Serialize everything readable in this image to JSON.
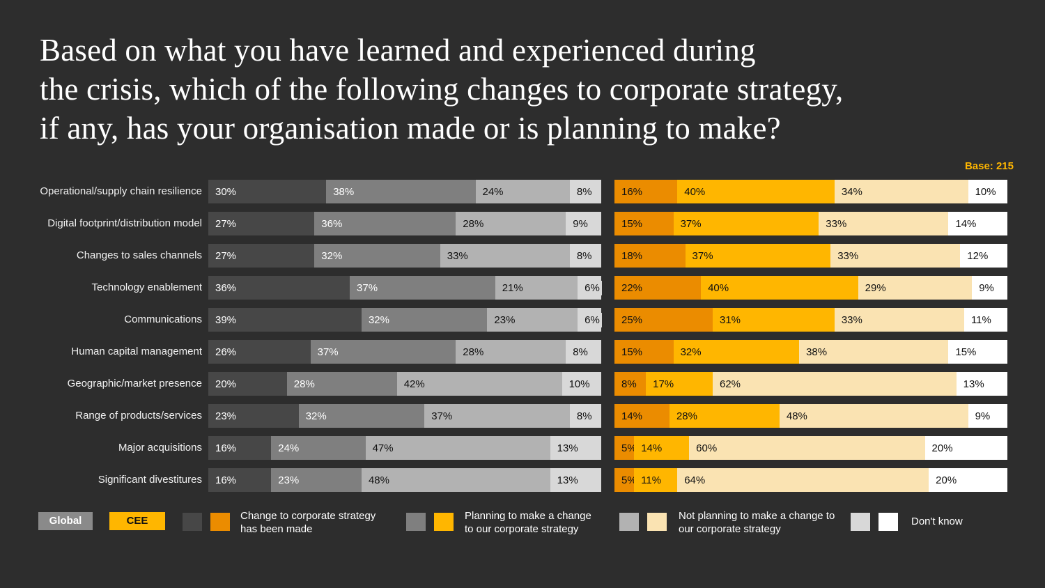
{
  "title": {
    "lines": [
      "Based on what you have learned and experienced during",
      "the crisis, which of the following changes to corporate strategy,",
      "if any, has your organisation made or is planning to make?"
    ]
  },
  "base_note": "Base: 215",
  "legend": {
    "global_button": "Global",
    "cee_button": "CEE",
    "items": [
      {
        "key": "made",
        "label": "Change to corporate strategy has been made"
      },
      {
        "key": "planning",
        "label": "Planning to make a change to our corporate strategy"
      },
      {
        "key": "not_planning",
        "label": "Not planning to make a change to our corporate strategy"
      },
      {
        "key": "dont_know",
        "label": "Don't know"
      }
    ]
  },
  "colors": {
    "background": "#2d2d2d",
    "accent": "#ffb600",
    "global_segments": [
      "#474747",
      "#7f7f7f",
      "#b2b2b2",
      "#d8d8d8"
    ],
    "cee_segments": [
      "#eb8c00",
      "#ffb600",
      "#fae3b2",
      "#ffffff"
    ],
    "global_text": [
      "#ffffff",
      "#ffffff",
      "#111111",
      "#111111"
    ],
    "cee_text": [
      "#111111",
      "#111111",
      "#111111",
      "#111111"
    ],
    "global_button_bg": "#8a8a8a",
    "title_text": "#ffffff"
  },
  "chart_data": {
    "type": "bar",
    "subtype": "horizontal-stacked-paired",
    "unit": "%",
    "base": 215,
    "legend_position": "bottom",
    "segments": [
      "Change to corporate strategy has been made",
      "Planning to make a change to our corporate strategy",
      "Not planning to make a change to our corporate strategy",
      "Don't know"
    ],
    "segment_keys": [
      "made",
      "planning",
      "not_planning",
      "dont_know"
    ],
    "categories": [
      "Operational/supply chain resilience",
      "Digital footprint/distribution model",
      "Changes to sales channels",
      "Technology enablement",
      "Communications",
      "Human capital management",
      "Geographic/market presence",
      "Range of products/services",
      "Major acquisitions",
      "Significant divestitures"
    ],
    "series": [
      {
        "name": "Global",
        "values": [
          [
            30,
            38,
            24,
            8
          ],
          [
            27,
            36,
            28,
            9
          ],
          [
            27,
            32,
            33,
            8
          ],
          [
            36,
            37,
            21,
            6
          ],
          [
            39,
            32,
            23,
            6
          ],
          [
            26,
            37,
            28,
            8
          ],
          [
            20,
            28,
            42,
            10
          ],
          [
            23,
            32,
            37,
            8
          ],
          [
            16,
            24,
            47,
            13
          ],
          [
            16,
            23,
            48,
            13
          ]
        ]
      },
      {
        "name": "CEE",
        "values": [
          [
            16,
            40,
            34,
            10
          ],
          [
            15,
            37,
            33,
            14
          ],
          [
            18,
            37,
            33,
            12
          ],
          [
            22,
            40,
            29,
            9
          ],
          [
            25,
            31,
            33,
            11
          ],
          [
            15,
            32,
            38,
            15
          ],
          [
            8,
            17,
            62,
            13
          ],
          [
            14,
            28,
            48,
            9
          ],
          [
            5,
            14,
            60,
            20
          ],
          [
            5,
            11,
            64,
            20
          ]
        ]
      }
    ]
  }
}
